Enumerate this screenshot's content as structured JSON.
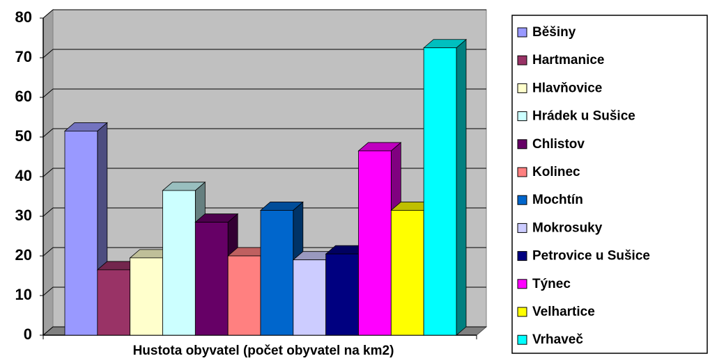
{
  "chart_data": {
    "type": "bar3d",
    "categories": [
      "Hustota obyvatel (počet obyvatel na km2)"
    ],
    "series": [
      {
        "name": "Běšiny",
        "color": "#9999ff",
        "values": [
          51.5
        ]
      },
      {
        "name": "Hartmanice",
        "color": "#993366",
        "values": [
          16.5
        ]
      },
      {
        "name": "Hlavňovice",
        "color": "#ffffcc",
        "values": [
          19.5
        ]
      },
      {
        "name": "Hrádek u Sušice",
        "color": "#ccffff",
        "values": [
          36.5
        ]
      },
      {
        "name": "Chlistov",
        "color": "#660066",
        "values": [
          28.5
        ]
      },
      {
        "name": "Kolinec",
        "color": "#ff8080",
        "values": [
          20
        ]
      },
      {
        "name": "Mochtín",
        "color": "#0066cc",
        "values": [
          31.5
        ]
      },
      {
        "name": "Mokrosuky",
        "color": "#ccccff",
        "values": [
          19
        ]
      },
      {
        "name": "Petrovice u Sušice",
        "color": "#000080",
        "values": [
          20.5
        ]
      },
      {
        "name": "Týnec",
        "color": "#ff00ff",
        "values": [
          46.5
        ]
      },
      {
        "name": "Velhartice",
        "color": "#ffff00",
        "values": [
          31.5
        ]
      },
      {
        "name": "Vrhaveč",
        "color": "#00ffff",
        "values": [
          72.5
        ]
      }
    ],
    "ylim": [
      0,
      80
    ],
    "yticks": [
      0,
      10,
      20,
      30,
      40,
      50,
      60,
      70,
      80
    ],
    "grid": true,
    "legend": "right"
  }
}
